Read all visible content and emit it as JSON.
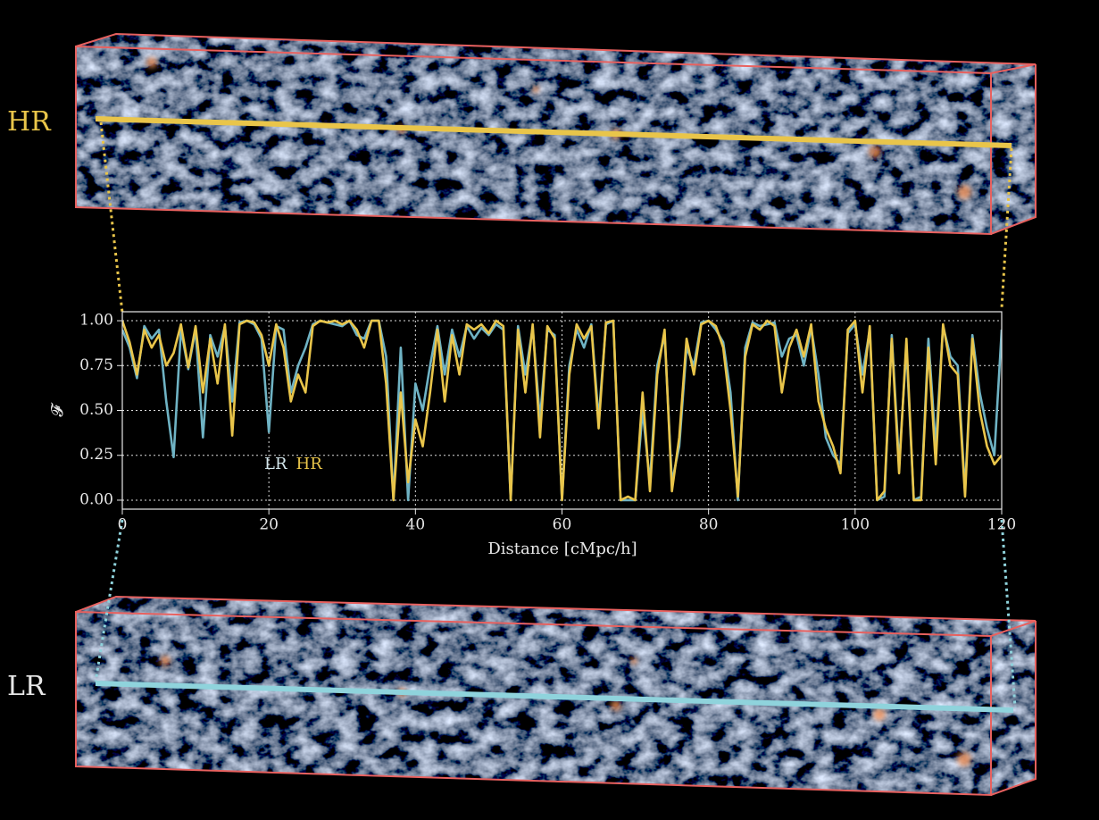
{
  "chart_data": {
    "type": "line",
    "annotations": [
      "HR",
      "LR"
    ],
    "xlabel": "Distance [cMpc/h]",
    "ylabel": "𝓕",
    "xlim": [
      0,
      120
    ],
    "ylim": [
      -0.05,
      1.05
    ],
    "xticks": [
      0,
      20,
      40,
      60,
      80,
      100,
      120
    ],
    "yticks": [
      {
        "value": 0,
        "label": "0.00"
      },
      {
        "value": 0.25,
        "label": "0.25"
      },
      {
        "value": 0.5,
        "label": "0.50"
      },
      {
        "value": 0.75,
        "label": "0.75"
      },
      {
        "value": 1,
        "label": "1.00"
      }
    ],
    "grid": true,
    "x": [
      0,
      1,
      2,
      3,
      4,
      5,
      6,
      7,
      8,
      9,
      10,
      11,
      12,
      13,
      14,
      15,
      16,
      17,
      18,
      19,
      20,
      21,
      22,
      23,
      24,
      25,
      26,
      27,
      28,
      29,
      30,
      31,
      32,
      33,
      34,
      35,
      36,
      37,
      38,
      39,
      40,
      41,
      42,
      43,
      44,
      45,
      46,
      47,
      48,
      49,
      50,
      51,
      52,
      53,
      54,
      55,
      56,
      57,
      58,
      59,
      60,
      61,
      62,
      63,
      64,
      65,
      66,
      67,
      68,
      69,
      70,
      71,
      72,
      73,
      74,
      75,
      76,
      77,
      78,
      79,
      80,
      81,
      82,
      83,
      84,
      85,
      86,
      87,
      88,
      89,
      90,
      91,
      92,
      93,
      94,
      95,
      96,
      97,
      98,
      99,
      100,
      101,
      102,
      103,
      104,
      105,
      106,
      107,
      108,
      109,
      110,
      111,
      112,
      113,
      114,
      115,
      116,
      117,
      118,
      119,
      120
    ],
    "series": [
      {
        "name": "LR",
        "color": "#6fb3c4",
        "values": [
          0.95,
          0.85,
          0.68,
          0.97,
          0.9,
          0.95,
          0.55,
          0.24,
          0.95,
          0.73,
          0.95,
          0.35,
          0.92,
          0.8,
          0.97,
          0.55,
          0.99,
          1.0,
          0.98,
          0.9,
          0.38,
          0.97,
          0.95,
          0.6,
          0.75,
          0.85,
          0.98,
          1.0,
          0.99,
          0.98,
          0.97,
          1.0,
          0.92,
          0.9,
          1.0,
          1.0,
          0.8,
          0.0,
          0.85,
          0.0,
          0.65,
          0.5,
          0.75,
          0.97,
          0.7,
          0.95,
          0.8,
          0.97,
          0.9,
          0.96,
          0.92,
          0.98,
          0.95,
          0.0,
          0.97,
          0.7,
          0.96,
          0.45,
          0.95,
          0.92,
          0.0,
          0.75,
          0.95,
          0.85,
          0.98,
          0.45,
          0.98,
          1.0,
          0.0,
          0.0,
          0.0,
          0.5,
          0.1,
          0.75,
          0.92,
          0.1,
          0.3,
          0.85,
          0.75,
          0.99,
          1.0,
          0.95,
          0.88,
          0.6,
          0.0,
          0.85,
          0.99,
          0.97,
          0.98,
          0.99,
          0.8,
          0.9,
          0.92,
          0.75,
          0.96,
          0.7,
          0.35,
          0.25,
          0.2,
          0.93,
          0.98,
          0.7,
          0.95,
          0.0,
          0.02,
          0.92,
          0.2,
          0.85,
          0.0,
          0.02,
          0.9,
          0.3,
          0.97,
          0.8,
          0.75,
          0.05,
          0.92,
          0.6,
          0.4,
          0.25,
          0.95
        ]
      },
      {
        "name": "HR",
        "color": "#e9c54a",
        "values": [
          1.0,
          0.88,
          0.7,
          0.95,
          0.85,
          0.92,
          0.75,
          0.82,
          0.98,
          0.74,
          0.97,
          0.6,
          0.9,
          0.65,
          0.98,
          0.36,
          0.98,
          1.0,
          0.99,
          0.92,
          0.75,
          0.98,
          0.85,
          0.55,
          0.7,
          0.6,
          0.97,
          1.0,
          0.99,
          1.0,
          0.98,
          1.0,
          0.95,
          0.85,
          1.0,
          1.0,
          0.65,
          0.0,
          0.6,
          0.1,
          0.45,
          0.3,
          0.6,
          0.95,
          0.55,
          0.92,
          0.7,
          0.98,
          0.95,
          0.98,
          0.93,
          1.0,
          0.97,
          0.0,
          0.95,
          0.6,
          0.98,
          0.35,
          0.97,
          0.9,
          0.0,
          0.7,
          0.98,
          0.9,
          0.97,
          0.4,
          0.99,
          1.0,
          0.0,
          0.02,
          0.0,
          0.6,
          0.05,
          0.7,
          0.95,
          0.05,
          0.35,
          0.9,
          0.7,
          0.98,
          1.0,
          0.97,
          0.85,
          0.5,
          0.02,
          0.8,
          0.98,
          0.95,
          1.0,
          0.97,
          0.6,
          0.85,
          0.95,
          0.8,
          0.98,
          0.55,
          0.4,
          0.3,
          0.15,
          0.95,
          1.0,
          0.6,
          0.97,
          0.0,
          0.05,
          0.9,
          0.15,
          0.9,
          0.0,
          0.0,
          0.85,
          0.2,
          0.98,
          0.75,
          0.7,
          0.02,
          0.9,
          0.5,
          0.3,
          0.2,
          0.25
        ]
      }
    ]
  }
}
